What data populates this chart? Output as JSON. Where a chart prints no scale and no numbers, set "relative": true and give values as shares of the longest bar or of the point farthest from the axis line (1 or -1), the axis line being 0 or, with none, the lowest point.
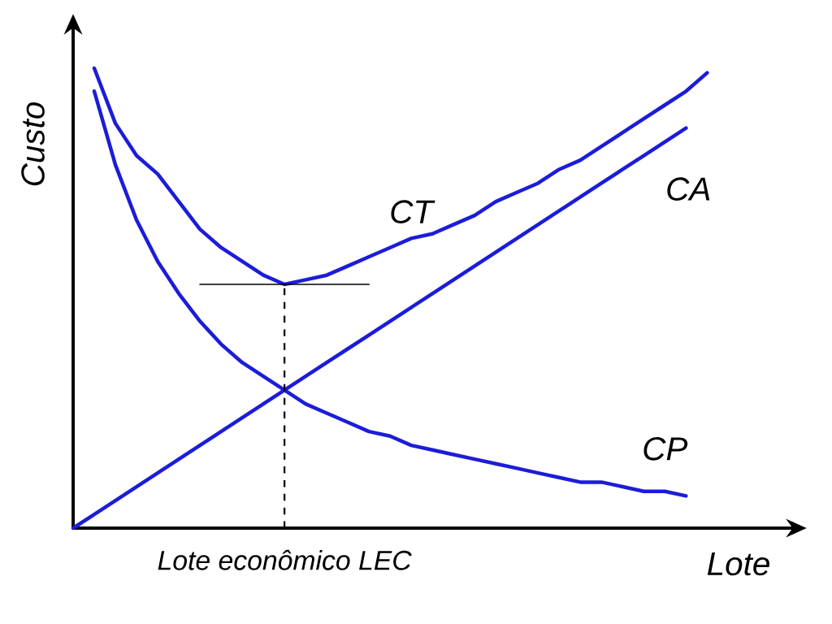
{
  "chart_data": {
    "type": "line",
    "relative": true,
    "xlabel": "Lote",
    "ylabel": "Custo",
    "line_style": "solid",
    "categories": [
      null,
      null,
      null,
      null,
      null,
      null,
      null,
      null,
      null,
      null,
      null,
      null,
      null,
      null,
      null,
      null,
      null,
      null,
      null,
      null,
      null,
      null,
      null,
      null,
      null,
      null,
      null,
      null,
      null,
      null,
      null
    ],
    "series": [
      {
        "name": "CT",
        "color": "#1c1cd8",
        "values": [
          null,
          1.0,
          0.88,
          0.81,
          0.77,
          0.71,
          0.65,
          0.61,
          0.58,
          0.55,
          0.53,
          0.54,
          0.55,
          0.57,
          0.59,
          0.61,
          0.63,
          0.64,
          0.66,
          0.68,
          0.71,
          0.73,
          0.75,
          0.78,
          0.8,
          0.83,
          0.86,
          0.89,
          0.92,
          0.95,
          0.99
        ]
      },
      {
        "name": "CA",
        "color": "#1c1cd8",
        "values": [
          0,
          0.03,
          0.06,
          0.09,
          0.12,
          0.15,
          0.18,
          0.21,
          0.24,
          0.27,
          0.3,
          0.33,
          0.36,
          0.39,
          0.42,
          0.45,
          0.48,
          0.51,
          0.54,
          0.57,
          0.6,
          0.63,
          0.66,
          0.69,
          0.72,
          0.75,
          0.78,
          0.81,
          0.84,
          0.87,
          null
        ]
      },
      {
        "name": "CP",
        "color": "#1c1cd8",
        "values": [
          null,
          0.95,
          0.79,
          0.67,
          0.58,
          0.51,
          0.45,
          0.4,
          0.36,
          0.33,
          0.3,
          0.27,
          0.25,
          0.23,
          0.21,
          0.2,
          0.18,
          0.17,
          0.16,
          0.15,
          0.14,
          0.13,
          0.12,
          0.11,
          0.1,
          0.1,
          0.09,
          0.08,
          0.08,
          0.07,
          null
        ]
      },
      {
        "color": "#000000",
        "values": [
          null,
          null,
          null,
          null,
          null,
          null,
          0.53,
          0.53,
          0.53,
          0.53,
          0.53,
          0.53,
          0.53,
          0.53,
          0.53,
          null,
          null,
          null,
          null,
          null,
          null,
          null,
          null,
          null,
          null,
          null,
          null,
          null,
          null,
          null,
          null
        ]
      }
    ],
    "annotations": [
      "Lote econômico LEC"
    ]
  }
}
